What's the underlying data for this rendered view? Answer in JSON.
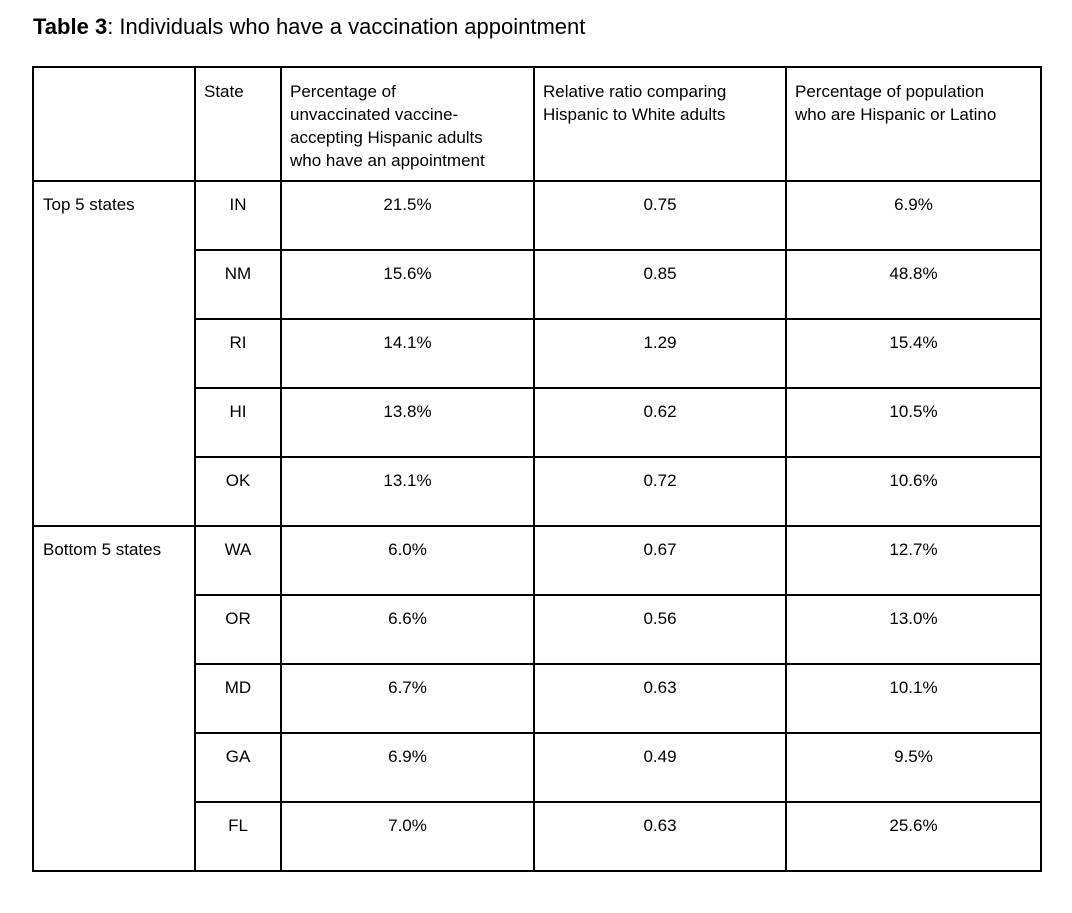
{
  "title": {
    "label": "Table 3",
    "text": ": Individuals who have a vaccination appointment"
  },
  "table": {
    "headers": [
      "",
      "State",
      "Percentage of\nunvaccinated vaccine-\naccepting Hispanic adults\nwho have an appointment",
      "Relative ratio comparing\nHispanic to White adults",
      "Percentage of population\nwho are Hispanic or Latino"
    ],
    "groups": [
      {
        "label": "Top 5 states",
        "rows": [
          [
            "IN",
            "21.5%",
            "0.75",
            "6.9%"
          ],
          [
            "NM",
            "15.6%",
            "0.85",
            "48.8%"
          ],
          [
            "RI",
            "14.1%",
            "1.29",
            "15.4%"
          ],
          [
            "HI",
            "13.8%",
            "0.62",
            "10.5%"
          ],
          [
            "OK",
            "13.1%",
            "0.72",
            "10.6%"
          ]
        ]
      },
      {
        "label": "Bottom 5 states",
        "rows": [
          [
            "WA",
            "6.0%",
            "0.67",
            "12.7%"
          ],
          [
            "OR",
            "6.6%",
            "0.56",
            "13.0%"
          ],
          [
            "MD",
            "6.7%",
            "0.63",
            "10.1%"
          ],
          [
            "GA",
            "6.9%",
            "0.49",
            "9.5%"
          ],
          [
            "FL",
            "7.0%",
            "0.63",
            "25.6%"
          ]
        ]
      }
    ]
  },
  "colors": {
    "text": "#000000",
    "border": "#000000",
    "background": "#ffffff"
  }
}
